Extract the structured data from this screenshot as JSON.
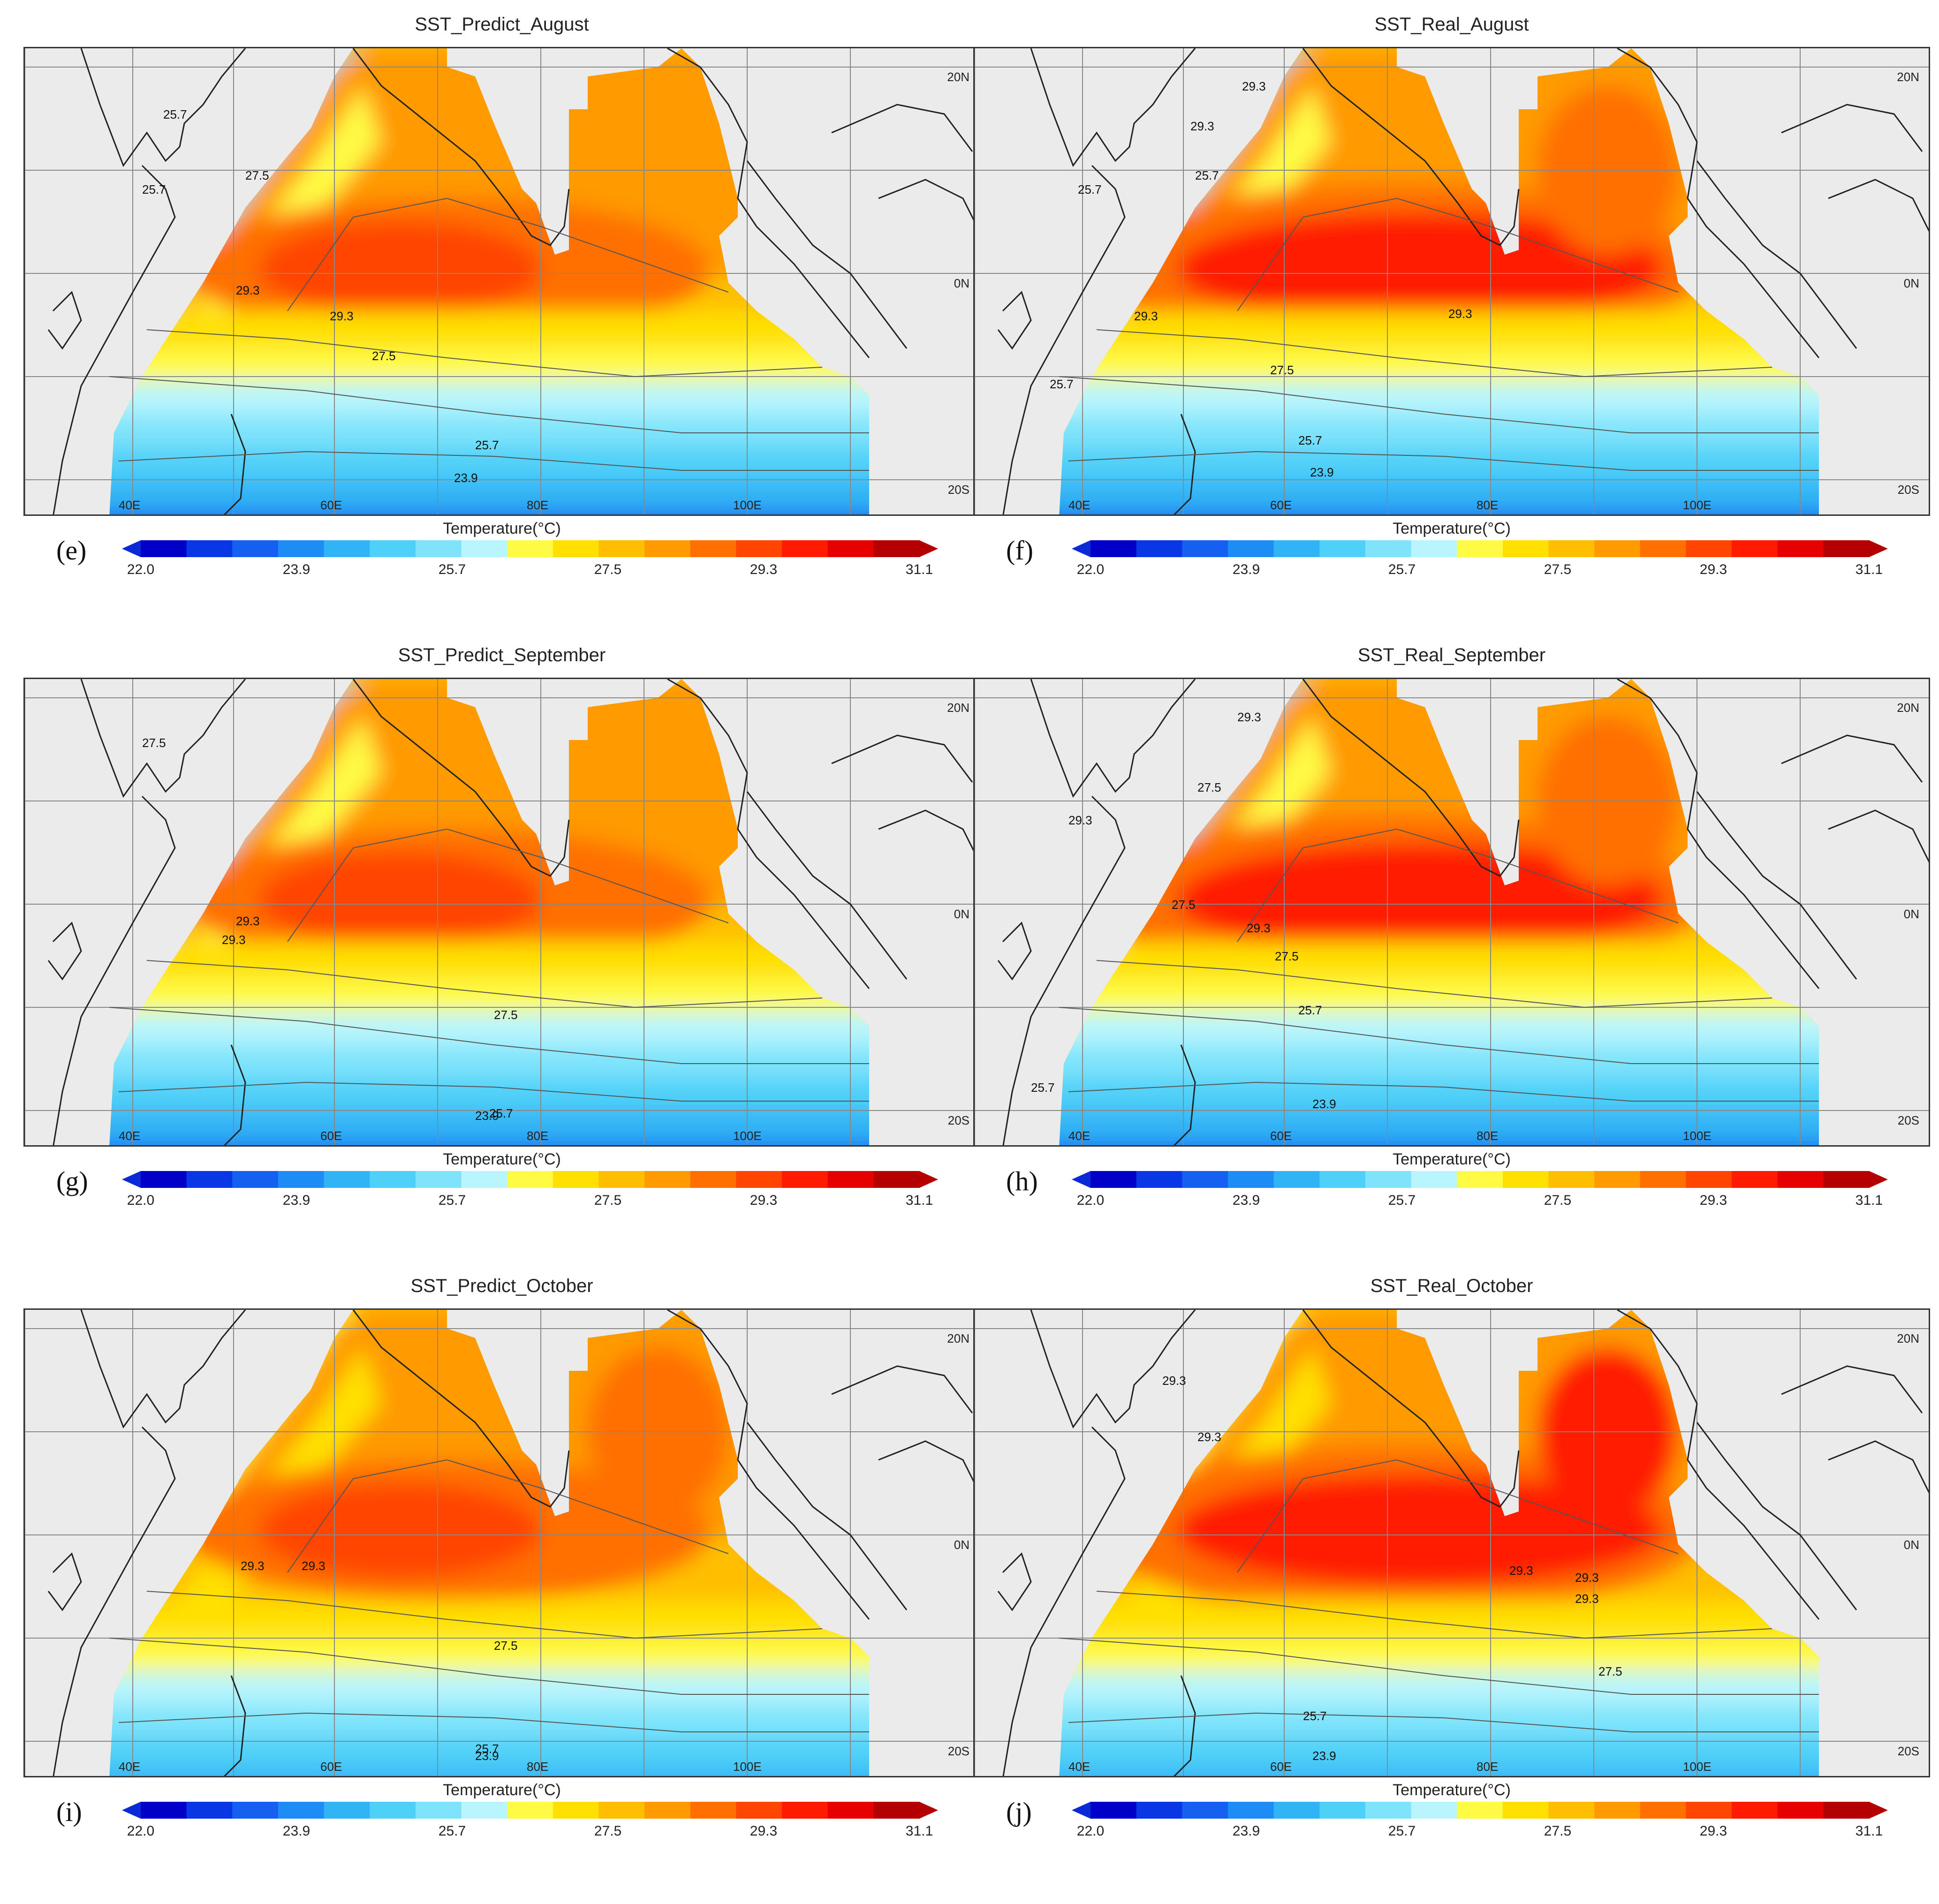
{
  "colorbar": {
    "title": "Temperature(°C)",
    "ticks": [
      "22.0",
      "23.9",
      "25.7",
      "27.5",
      "29.3",
      "31.1"
    ],
    "colors": [
      "#0000c8",
      "#0a37e6",
      "#1560f0",
      "#1e8cf5",
      "#30b4f5",
      "#4fd0f8",
      "#7fe4fb",
      "#b8f5fd",
      "#fffa44",
      "#ffe000",
      "#ffbe00",
      "#ff9a00",
      "#ff7000",
      "#ff4500",
      "#ff1a00",
      "#e60000",
      "#b40000"
    ],
    "under_color": "#0a2ad8",
    "over_color": "#b40000"
  },
  "axes": {
    "lat_labels": [
      "20N",
      "0N",
      "20S"
    ],
    "lon_labels": [
      "40E",
      "60E",
      "80E",
      "100E"
    ]
  },
  "panels": [
    {
      "title": "SST_Predict_August",
      "letter": "(e)",
      "contour_labels": [
        "25.7",
        "25.7",
        "27.5",
        "29.3",
        "29.3",
        "27.5",
        "25.7",
        "23.9"
      ]
    },
    {
      "title": "SST_Real_August",
      "letter": "(f)",
      "contour_labels": [
        "29.3",
        "25.7",
        "25.7",
        "29.3",
        "29.3",
        "29.3",
        "27.5",
        "25.7",
        "25.7",
        "23.9"
      ]
    },
    {
      "title": "SST_Predict_September",
      "letter": "(g)",
      "contour_labels": [
        "27.5",
        "29.3",
        "29.3",
        "27.5",
        "25.7",
        "23.9"
      ]
    },
    {
      "title": "SST_Real_September",
      "letter": "(h)",
      "contour_labels": [
        "29.3",
        "27.5",
        "29.3",
        "27.5",
        "29.3",
        "27.5",
        "25.7",
        "25.7",
        "23.9"
      ]
    },
    {
      "title": "SST_Predict_October",
      "letter": "(i)",
      "contour_labels": [
        "29.3",
        "29.3",
        "27.5",
        "25.7",
        "23.9"
      ]
    },
    {
      "title": "SST_Real_October",
      "letter": "(j)",
      "contour_labels": [
        "29.3",
        "29.3",
        "29.3",
        "29.3",
        "29.3",
        "27.5",
        "25.7",
        "23.9"
      ]
    }
  ]
}
